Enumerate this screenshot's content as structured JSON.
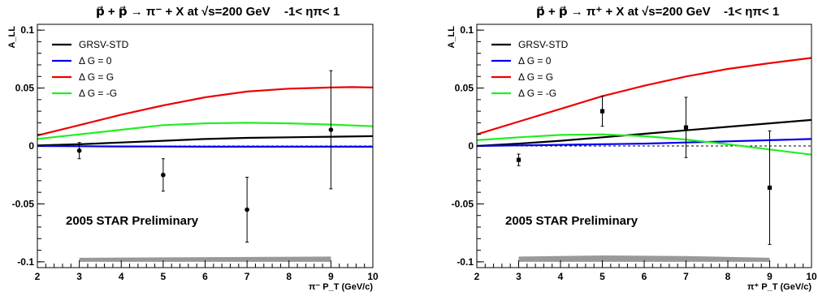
{
  "chart_data": [
    {
      "type": "line",
      "title": "p⃗ + p⃗ → π⁻ + X at √s=200 GeV",
      "eta_range": "-1< ηπ< 1",
      "ylabel": "A_LL",
      "xlabel": "π⁻ P_T (GeV/c)",
      "xlim": [
        2,
        10
      ],
      "ylim": [
        -0.105,
        0.105
      ],
      "x_ticks": [
        "2",
        "3",
        "4",
        "5",
        "6",
        "7",
        "8",
        "9",
        "10"
      ],
      "y_ticks": [
        {
          "v": -0.1,
          "label": "-0.1"
        },
        {
          "v": -0.05,
          "label": "-0.05"
        },
        {
          "v": 0,
          "label": "0"
        },
        {
          "v": 0.05,
          "label": "0.05"
        },
        {
          "v": 0.1,
          "label": "0.1"
        }
      ],
      "annotation": "2005 STAR Preliminary",
      "legend_position": "top-left",
      "series": [
        {
          "name": "GRSV-STD",
          "color": "#000000",
          "x": [
            2,
            3,
            4,
            5,
            6,
            7,
            8,
            9,
            10
          ],
          "y": [
            0.0005,
            0.0015,
            0.003,
            0.0045,
            0.006,
            0.007,
            0.0075,
            0.008,
            0.0085
          ]
        },
        {
          "name": "Δ G =  0",
          "color": "#0000ee",
          "x": [
            2,
            3,
            4,
            5,
            6,
            7,
            8,
            9,
            10
          ],
          "y": [
            0.0,
            -0.0002,
            -0.0004,
            -0.0005,
            -0.0006,
            -0.0006,
            -0.0006,
            -0.0006,
            -0.0006
          ]
        },
        {
          "name": "Δ G =  G",
          "color": "#ee0000",
          "x": [
            2,
            3,
            4,
            5,
            6,
            7,
            8,
            9,
            9.5,
            10
          ],
          "y": [
            0.009,
            0.018,
            0.027,
            0.035,
            0.042,
            0.047,
            0.0495,
            0.0505,
            0.0508,
            0.0505
          ]
        },
        {
          "name": "Δ G = -G",
          "color": "#22ee22",
          "x": [
            2,
            3,
            4,
            5,
            6,
            7,
            8,
            9,
            10
          ],
          "y": [
            0.006,
            0.01,
            0.014,
            0.018,
            0.0195,
            0.02,
            0.0195,
            0.0185,
            0.017
          ]
        }
      ],
      "data_points": [
        {
          "x": 3,
          "y": -0.004,
          "err": 0.007
        },
        {
          "x": 5,
          "y": -0.025,
          "err": 0.014
        },
        {
          "x": 7,
          "y": -0.055,
          "err": 0.028
        },
        {
          "x": 9,
          "y": 0.014,
          "err": 0.051
        }
      ],
      "systematic_band": {
        "x": [
          3,
          5,
          7,
          9
        ],
        "low": [
          -0.1,
          -0.1,
          -0.1,
          -0.1
        ],
        "high": [
          -0.0965,
          -0.0962,
          -0.0958,
          -0.0955
        ]
      }
    },
    {
      "type": "line",
      "title": "p⃗ + p⃗ → π⁺ + X at √s=200 GeV",
      "eta_range": "-1< ηπ< 1",
      "ylabel": "A_LL",
      "xlabel": "π⁺ P_T (GeV/c)",
      "xlim": [
        2,
        10
      ],
      "ylim": [
        -0.105,
        0.105
      ],
      "x_ticks": [
        "2",
        "3",
        "4",
        "5",
        "6",
        "7",
        "8",
        "9",
        "10"
      ],
      "y_ticks": [
        {
          "v": -0.1,
          "label": "-0.1"
        },
        {
          "v": -0.05,
          "label": "-0.05"
        },
        {
          "v": 0,
          "label": "0"
        },
        {
          "v": 0.05,
          "label": "0.05"
        },
        {
          "v": 0.1,
          "label": "0.1"
        }
      ],
      "annotation": "2005 STAR Preliminary",
      "legend_position": "top-left",
      "series": [
        {
          "name": "GRSV-STD",
          "color": "#000000",
          "x": [
            2,
            3,
            4,
            5,
            6,
            7,
            8,
            9,
            10
          ],
          "y": [
            0.0,
            0.002,
            0.0045,
            0.0075,
            0.0105,
            0.0135,
            0.0165,
            0.0195,
            0.0225
          ]
        },
        {
          "name": "Δ G =  0",
          "color": "#0000ee",
          "x": [
            2,
            3,
            4,
            5,
            6,
            7,
            8,
            9,
            10
          ],
          "y": [
            0.0,
            0.0005,
            0.001,
            0.0015,
            0.002,
            0.003,
            0.004,
            0.005,
            0.006
          ]
        },
        {
          "name": "Δ G =  G",
          "color": "#ee0000",
          "x": [
            2,
            3,
            4,
            5,
            6,
            7,
            8,
            9,
            10
          ],
          "y": [
            0.01,
            0.021,
            0.032,
            0.043,
            0.052,
            0.06,
            0.0665,
            0.0715,
            0.076
          ]
        },
        {
          "name": "Δ G = -G",
          "color": "#22ee22",
          "x": [
            2,
            3,
            4,
            5,
            6,
            7,
            8,
            9,
            10
          ],
          "y": [
            0.005,
            0.0075,
            0.0095,
            0.01,
            0.0085,
            0.0055,
            0.0015,
            -0.003,
            -0.0075
          ]
        }
      ],
      "data_points": [
        {
          "x": 3,
          "y": -0.012,
          "err": 0.005
        },
        {
          "x": 5,
          "y": 0.03,
          "err": 0.013
        },
        {
          "x": 7,
          "y": 0.016,
          "err": 0.026
        },
        {
          "x": 9,
          "y": -0.036,
          "err": 0.049
        }
      ],
      "systematic_band": {
        "x": [
          3,
          5,
          7,
          9
        ],
        "low": [
          -0.1,
          -0.1,
          -0.1,
          -0.1
        ],
        "high": [
          -0.0955,
          -0.0945,
          -0.095,
          -0.0965
        ]
      }
    }
  ]
}
